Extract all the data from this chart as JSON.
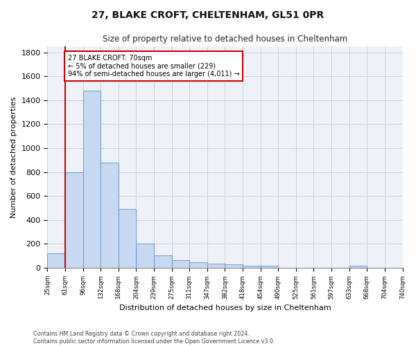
{
  "title": "27, BLAKE CROFT, CHELTENHAM, GL51 0PR",
  "subtitle": "Size of property relative to detached houses in Cheltenham",
  "xlabel": "Distribution of detached houses by size in Cheltenham",
  "ylabel": "Number of detached properties",
  "bar_values": [
    120,
    800,
    1480,
    880,
    490,
    205,
    105,
    65,
    45,
    35,
    30,
    20,
    15,
    0,
    0,
    0,
    0,
    20,
    0,
    0
  ],
  "categories": [
    "25sqm",
    "61sqm",
    "96sqm",
    "132sqm",
    "168sqm",
    "204sqm",
    "239sqm",
    "275sqm",
    "311sqm",
    "347sqm",
    "382sqm",
    "418sqm",
    "454sqm",
    "490sqm",
    "525sqm",
    "561sqm",
    "597sqm",
    "633sqm",
    "668sqm",
    "704sqm",
    "740sqm"
  ],
  "bar_color": "#c6d9f0",
  "bar_edge_color": "#5b8fcc",
  "grid_color": "#c8d0e0",
  "vline_color": "#cc0000",
  "annotation_box_color": "#cc0000",
  "annotation_text": "27 BLAKE CROFT: 70sqm\n← 5% of detached houses are smaller (229)\n94% of semi-detached houses are larger (4,011) →",
  "ylim": [
    0,
    1850
  ],
  "yticks": [
    0,
    200,
    400,
    600,
    800,
    1000,
    1200,
    1400,
    1600,
    1800
  ],
  "footer_line1": "Contains HM Land Registry data © Crown copyright and database right 2024.",
  "footer_line2": "Contains public sector information licensed under the Open Government Licence v3.0.",
  "background_color": "#eef2f8"
}
